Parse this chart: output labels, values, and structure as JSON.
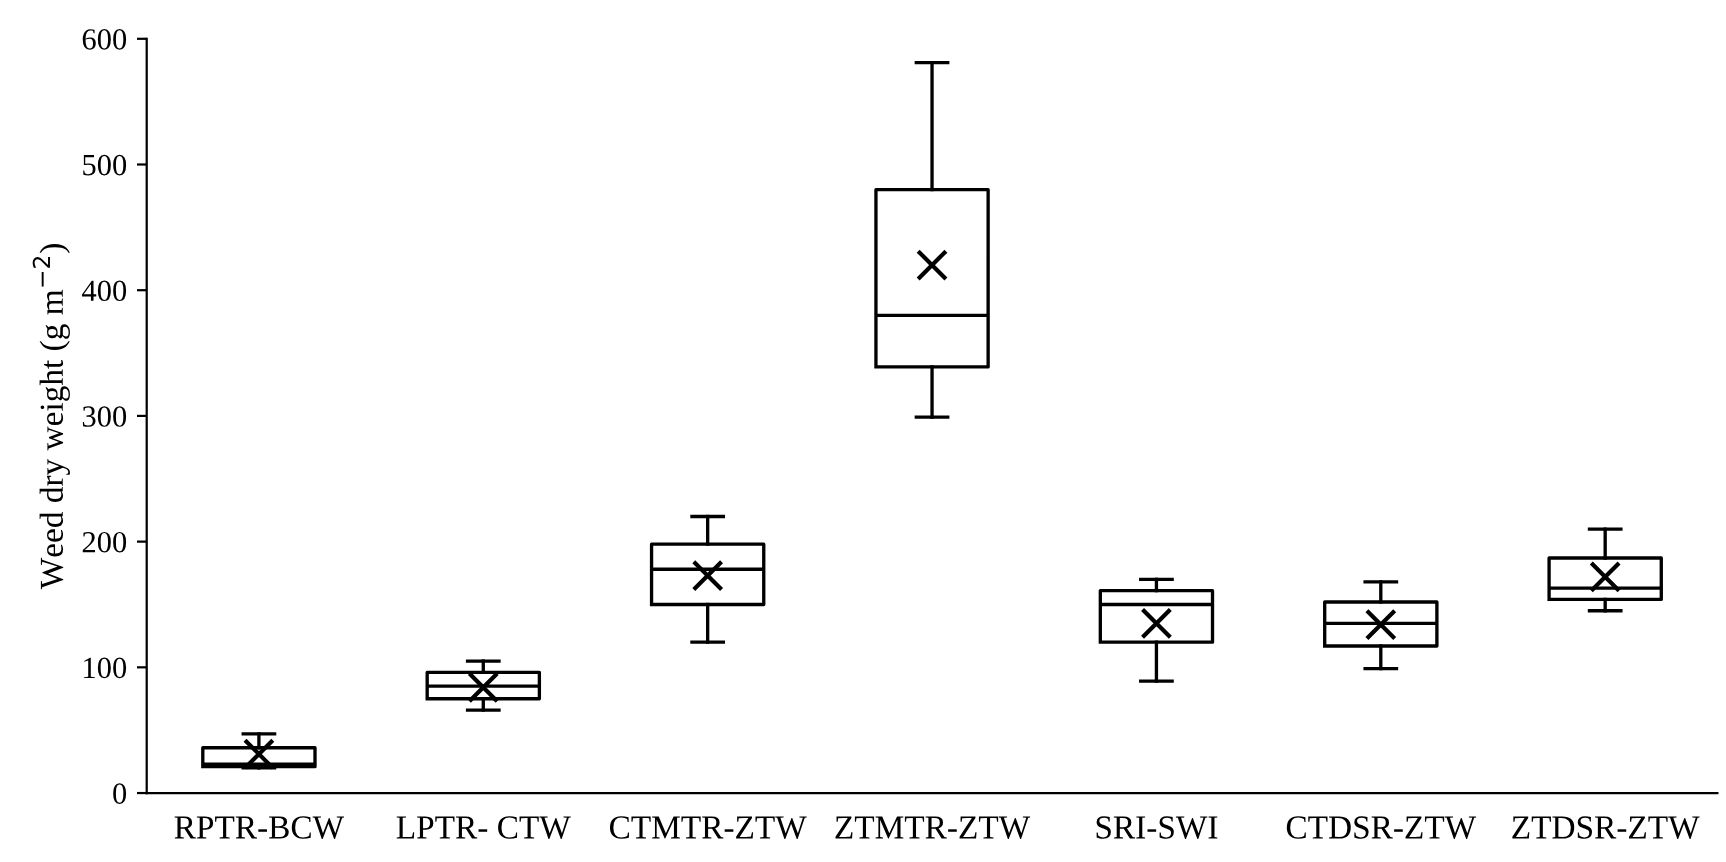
{
  "chart_data": {
    "type": "box",
    "ylabel": "Weed dry weight (g m$^{−2}$)",
    "categories": [
      "RPTR-BCW",
      "LPTR- CTW",
      "CTMTR-ZTW",
      "ZTMTR-ZTW",
      "SRI-SWI",
      "CTDSR-ZTW",
      "ZTDSR-ZTW"
    ],
    "boxes": [
      {
        "low": 20,
        "q1": 21,
        "median": 23,
        "q3": 36,
        "high": 47,
        "mean": 31
      },
      {
        "low": 66,
        "q1": 75,
        "median": 85,
        "q3": 96,
        "high": 105,
        "mean": 84
      },
      {
        "low": 120,
        "q1": 150,
        "median": 178,
        "q3": 198,
        "high": 220,
        "mean": 173
      },
      {
        "low": 299,
        "q1": 339,
        "median": 380,
        "q3": 480,
        "high": 581,
        "mean": 420
      },
      {
        "low": 89,
        "q1": 120,
        "median": 150,
        "q3": 161,
        "high": 170,
        "mean": 135
      },
      {
        "low": 99,
        "q1": 117,
        "median": 135,
        "q3": 152,
        "high": 168,
        "mean": 134
      },
      {
        "low": 145,
        "q1": 154,
        "median": 163,
        "q3": 187,
        "high": 210,
        "mean": 172
      }
    ],
    "ylim": [
      0,
      600
    ],
    "yticks": [
      0,
      100,
      200,
      300,
      400,
      500,
      600
    ],
    "grid": false,
    "marker": "cross"
  }
}
